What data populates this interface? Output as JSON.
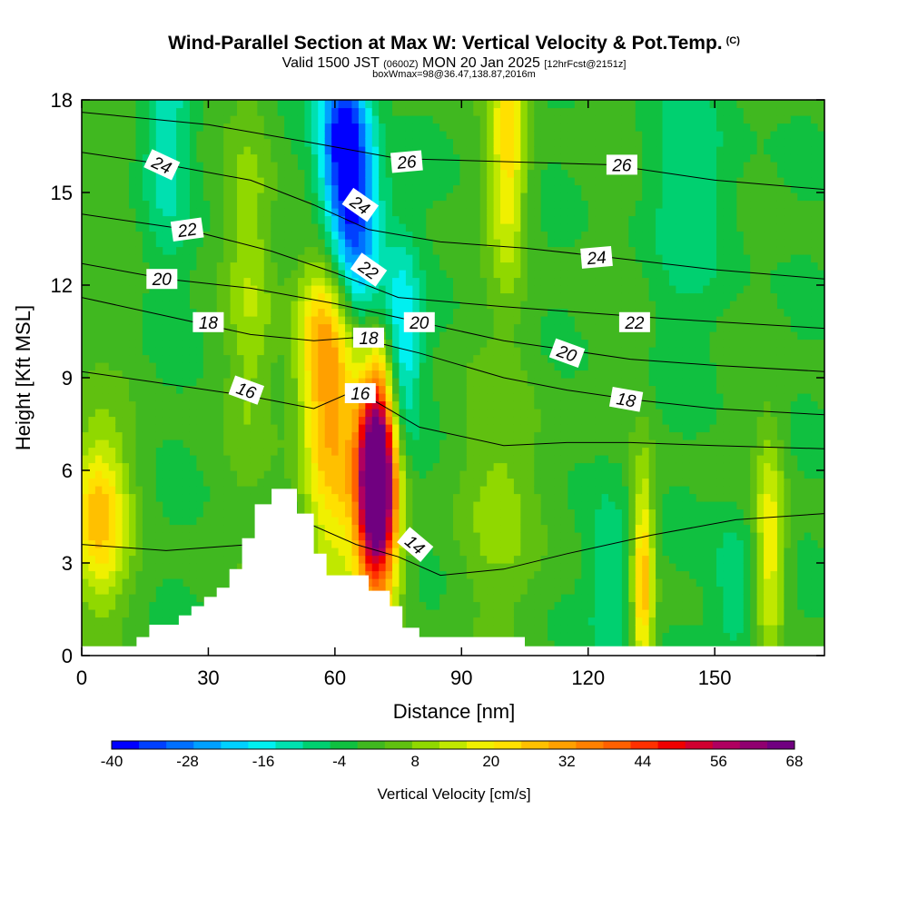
{
  "header": {
    "title": "Wind-Parallel Section at Max W: Vertical Velocity & Pot.Temp.",
    "copyright": "(C)",
    "valid_prefix": "Valid 1500 JST",
    "valid_utc": "(0600Z)",
    "valid_date": "MON 20 Jan 2025",
    "forecast": "[12hrFcst@2151z]",
    "boxinfo": "boxWmax=98@36.47,138.87,2016m"
  },
  "colors": {
    "scale": [
      "#0000ff",
      "#0040ff",
      "#0070ff",
      "#00a0ff",
      "#00d0ff",
      "#00f0f0",
      "#00e0b0",
      "#00d070",
      "#10c040",
      "#40b820",
      "#60c010",
      "#90d800",
      "#c0e800",
      "#f0f000",
      "#ffe000",
      "#ffc000",
      "#ffa000",
      "#ff8000",
      "#ff6000",
      "#ff3000",
      "#f00000",
      "#d00030",
      "#b00060",
      "#900070",
      "#700080"
    ],
    "terrain": "#ffffff",
    "contour": "#000000"
  },
  "chart_data": {
    "type": "heatmap",
    "title": "Wind-Parallel Section at Max W: Vertical Velocity & Pot.Temp.",
    "xlabel": "Distance [nm]",
    "ylabel": "Height [Kft MSL]",
    "xlim": [
      0,
      176
    ],
    "ylim": [
      0,
      18
    ],
    "xticks": [
      0,
      30,
      60,
      90,
      120,
      150
    ],
    "yticks": [
      0,
      3,
      6,
      9,
      12,
      15,
      18
    ],
    "colorbar": {
      "label": "Vertical Velocity [cm/s]",
      "min": -40,
      "max": 68,
      "step": 4.32,
      "tick_values": [
        -40,
        -28,
        -16,
        -4,
        8,
        20,
        32,
        44,
        56,
        68
      ]
    },
    "terrain_profile": [
      [
        0,
        0.3
      ],
      [
        13,
        0.3
      ],
      [
        13,
        0.6
      ],
      [
        16,
        0.6
      ],
      [
        16,
        1.0
      ],
      [
        23,
        1.0
      ],
      [
        23,
        1.3
      ],
      [
        26,
        1.3
      ],
      [
        26,
        1.6
      ],
      [
        29,
        1.6
      ],
      [
        29,
        1.9
      ],
      [
        32,
        1.9
      ],
      [
        32,
        2.2
      ],
      [
        35,
        2.2
      ],
      [
        35,
        2.8
      ],
      [
        38,
        2.8
      ],
      [
        38,
        3.8
      ],
      [
        41,
        3.8
      ],
      [
        41,
        4.9
      ],
      [
        45,
        4.9
      ],
      [
        45,
        5.4
      ],
      [
        51,
        5.4
      ],
      [
        51,
        4.6
      ],
      [
        55,
        4.6
      ],
      [
        55,
        3.3
      ],
      [
        58,
        3.3
      ],
      [
        58,
        2.6
      ],
      [
        61,
        2.6
      ],
      [
        61,
        2.6
      ],
      [
        68,
        2.6
      ],
      [
        68,
        2.1
      ],
      [
        73,
        2.1
      ],
      [
        73,
        1.6
      ],
      [
        76,
        1.6
      ],
      [
        76,
        0.9
      ],
      [
        80,
        0.9
      ],
      [
        80,
        0.6
      ],
      [
        105,
        0.6
      ],
      [
        105,
        0.3
      ],
      [
        176,
        0.3
      ]
    ],
    "w_features": [
      {
        "x": 70,
        "z": 6.0,
        "sx": 3.0,
        "sz": 2.2,
        "w": 66
      },
      {
        "x": 70,
        "z": 4.5,
        "sx": 4.0,
        "sz": 3.0,
        "w": 28
      },
      {
        "x": 59,
        "z": 7.0,
        "sx": 5.0,
        "sz": 3.5,
        "w": 26
      },
      {
        "x": 57,
        "z": 10.5,
        "sx": 4.5,
        "sz": 2.0,
        "w": 18
      },
      {
        "x": 4,
        "z": 4.5,
        "sx": 5.0,
        "sz": 2.0,
        "w": 26
      },
      {
        "x": 101,
        "z": 16.5,
        "sx": 3.0,
        "sz": 3.0,
        "w": 22
      },
      {
        "x": 133,
        "z": 2.5,
        "sx": 1.8,
        "sz": 2.5,
        "w": 28
      },
      {
        "x": 163,
        "z": 3.5,
        "sx": 2.5,
        "sz": 2.5,
        "w": 20
      },
      {
        "x": 40,
        "z": 12.0,
        "sx": 4.0,
        "sz": 4.0,
        "w": 10
      },
      {
        "x": 100,
        "z": 5.0,
        "sx": 8.0,
        "sz": 3.0,
        "w": 8
      },
      {
        "x": 62,
        "z": 16.5,
        "sx": 4.0,
        "sz": 2.5,
        "w": -38
      },
      {
        "x": 66,
        "z": 13.5,
        "sx": 4.0,
        "sz": 2.5,
        "w": -24
      },
      {
        "x": 76,
        "z": 10.0,
        "sx": 3.0,
        "sz": 2.5,
        "w": -20
      },
      {
        "x": 20,
        "z": 17.0,
        "sx": 4.0,
        "sz": 3.0,
        "w": -12
      },
      {
        "x": 145,
        "z": 15.0,
        "sx": 8.0,
        "sz": 3.0,
        "w": -8
      },
      {
        "x": 155,
        "z": 2.0,
        "sx": 4.0,
        "sz": 2.0,
        "w": -10
      },
      {
        "x": 125,
        "z": 2.5,
        "sx": 4.0,
        "sz": 2.5,
        "w": -10
      }
    ],
    "theta_contours": [
      {
        "label": "14",
        "label_pos": [
          79,
          3.6
        ],
        "label_rot": 40,
        "points": [
          [
            0,
            3.6
          ],
          [
            20,
            3.4
          ],
          [
            40,
            3.6
          ],
          [
            55,
            4.2
          ],
          [
            65,
            3.6
          ],
          [
            75,
            3.2
          ],
          [
            85,
            2.6
          ],
          [
            100,
            2.8
          ],
          [
            115,
            3.3
          ],
          [
            135,
            3.9
          ],
          [
            155,
            4.4
          ],
          [
            176,
            4.6
          ]
        ]
      },
      {
        "label": "16",
        "label_pos": [
          39,
          8.6
        ],
        "label_rot": 20,
        "points": [
          [
            0,
            9.2
          ],
          [
            20,
            8.8
          ],
          [
            40,
            8.4
          ],
          [
            55,
            8.0
          ],
          [
            65,
            8.6
          ],
          [
            80,
            7.4
          ],
          [
            100,
            6.8
          ],
          [
            115,
            6.9
          ],
          [
            130,
            6.9
          ],
          [
            150,
            6.8
          ],
          [
            176,
            6.7
          ]
        ]
      },
      {
        "label": "16",
        "label_pos": [
          66,
          8.5
        ],
        "label_rot": 0,
        "points": []
      },
      {
        "label": "18",
        "label_pos": [
          30,
          10.8
        ],
        "label_rot": 0,
        "points": [
          [
            0,
            11.6
          ],
          [
            20,
            11.0
          ],
          [
            40,
            10.4
          ],
          [
            55,
            10.2
          ],
          [
            65,
            10.3
          ],
          [
            80,
            9.8
          ],
          [
            100,
            9.0
          ],
          [
            115,
            8.6
          ],
          [
            130,
            8.3
          ],
          [
            150,
            8.0
          ],
          [
            176,
            7.8
          ]
        ]
      },
      {
        "label": "18",
        "label_pos": [
          68,
          10.3
        ],
        "label_rot": 0,
        "points": []
      },
      {
        "label": "18",
        "label_pos": [
          129,
          8.3
        ],
        "label_rot": 10,
        "points": []
      },
      {
        "label": "20",
        "label_pos": [
          19,
          12.2
        ],
        "label_rot": 0,
        "points": [
          [
            0,
            12.7
          ],
          [
            20,
            12.2
          ],
          [
            40,
            11.9
          ],
          [
            60,
            11.4
          ],
          [
            80,
            10.8
          ],
          [
            100,
            10.2
          ],
          [
            115,
            9.9
          ],
          [
            130,
            9.6
          ],
          [
            150,
            9.4
          ],
          [
            176,
            9.2
          ]
        ]
      },
      {
        "label": "20",
        "label_pos": [
          80,
          10.8
        ],
        "label_rot": 0,
        "points": []
      },
      {
        "label": "20",
        "label_pos": [
          115,
          9.8
        ],
        "label_rot": 20,
        "points": []
      },
      {
        "label": "22",
        "label_pos": [
          25,
          13.8
        ],
        "label_rot": -8,
        "points": [
          [
            0,
            14.3
          ],
          [
            25,
            13.8
          ],
          [
            45,
            13.1
          ],
          [
            60,
            12.4
          ],
          [
            75,
            11.6
          ],
          [
            100,
            11.3
          ],
          [
            120,
            11.1
          ],
          [
            140,
            10.9
          ],
          [
            176,
            10.6
          ]
        ]
      },
      {
        "label": "22",
        "label_pos": [
          68,
          12.5
        ],
        "label_rot": 35,
        "points": []
      },
      {
        "label": "22",
        "label_pos": [
          131,
          10.8
        ],
        "label_rot": 0,
        "points": []
      },
      {
        "label": "24",
        "label_pos": [
          19,
          15.9
        ],
        "label_rot": 25,
        "points": [
          [
            0,
            16.3
          ],
          [
            20,
            15.9
          ],
          [
            40,
            15.4
          ],
          [
            55,
            14.6
          ],
          [
            68,
            13.8
          ],
          [
            85,
            13.4
          ],
          [
            105,
            13.2
          ],
          [
            125,
            12.9
          ],
          [
            150,
            12.5
          ],
          [
            176,
            12.2
          ]
        ]
      },
      {
        "label": "24",
        "label_pos": [
          66,
          14.6
        ],
        "label_rot": 35,
        "points": []
      },
      {
        "label": "24",
        "label_pos": [
          122,
          12.9
        ],
        "label_rot": -5,
        "points": []
      },
      {
        "label": "26",
        "label_pos": [
          77,
          16.0
        ],
        "label_rot": -5,
        "points": [
          [
            0,
            17.6
          ],
          [
            30,
            17.2
          ],
          [
            55,
            16.6
          ],
          [
            75,
            16.1
          ],
          [
            100,
            16.0
          ],
          [
            125,
            15.9
          ],
          [
            150,
            15.4
          ],
          [
            176,
            15.1
          ]
        ]
      },
      {
        "label": "26",
        "label_pos": [
          128,
          15.9
        ],
        "label_rot": 0,
        "points": []
      }
    ]
  }
}
